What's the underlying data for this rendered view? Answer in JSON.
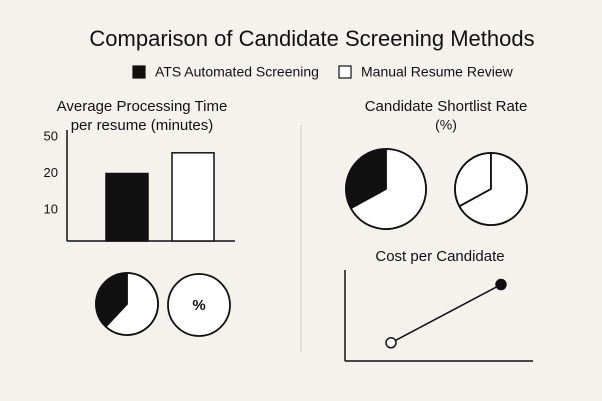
{
  "title": "Comparison of Candidate Screening Methods",
  "chart_data": [
    {
      "type": "bar",
      "title": "Average Processing Time",
      "subtitle": "per resume (minutes)",
      "categories": [
        null
      ],
      "series": [
        {
          "name": "ATS Automated Screening",
          "color": "#111111",
          "values": [
            20
          ]
        },
        {
          "name": "Manual Resume Review",
          "color": "#ffffff",
          "values": [
            37
          ]
        }
      ],
      "ylim": [
        0,
        50
      ],
      "yticks": [
        50,
        20,
        10
      ]
    },
    {
      "type": "pie",
      "values": [
        38,
        62
      ],
      "colors": [
        "#111111",
        "#ffffff"
      ]
    },
    {
      "type": "pie",
      "label": "%",
      "values": [],
      "colors": []
    },
    {
      "type": "pie",
      "title": "Candidate Shortlist Rate",
      "subtitle": "(%)",
      "values": [
        33,
        67
      ],
      "colors": [
        "#111111",
        "#ffffff"
      ]
    },
    {
      "type": "pie",
      "values": [
        33,
        67
      ],
      "colors": [
        "#ffffff",
        "#ffffff"
      ]
    },
    {
      "type": "line",
      "title": "Cost per Candidate",
      "categories": [
        null,
        null
      ],
      "values": [
        20,
        84
      ],
      "marker_colors": [
        "#ffffff",
        "#111111"
      ],
      "ylim": [
        0,
        100
      ]
    }
  ]
}
